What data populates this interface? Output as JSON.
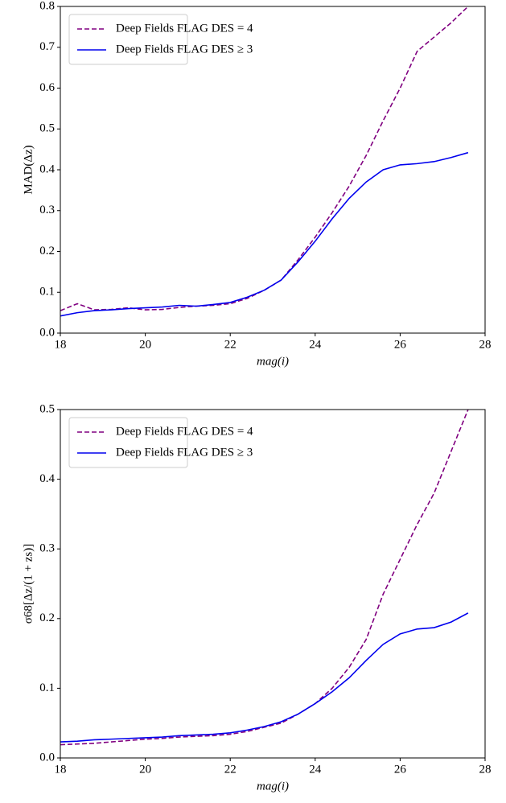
{
  "chart_data": [
    {
      "type": "line",
      "ylabel": "MAD(Δz)",
      "xlabel": "mag(i)",
      "x": [
        18,
        18.4,
        18.8,
        19.2,
        19.6,
        20,
        20.4,
        20.8,
        21.2,
        21.6,
        22,
        22.4,
        22.8,
        23.2,
        23.6,
        24,
        24.4,
        24.8,
        25.2,
        25.6,
        26,
        26.4,
        26.8,
        27.2,
        27.6
      ],
      "series": [
        {
          "name": "Deep Fields FLAG DES = 4",
          "color": "#800080",
          "linestyle": "dashed",
          "values": [
            0.055,
            0.072,
            0.057,
            0.058,
            0.062,
            0.057,
            0.058,
            0.063,
            0.066,
            0.068,
            0.072,
            0.085,
            0.105,
            0.13,
            0.18,
            0.235,
            0.295,
            0.36,
            0.435,
            0.52,
            0.6,
            0.69,
            0.725,
            0.76,
            0.8
          ]
        },
        {
          "name": "Deep Fields FLAG DES ≥ 3",
          "color": "#0000ee",
          "linestyle": "solid",
          "values": [
            0.042,
            0.05,
            0.055,
            0.057,
            0.06,
            0.062,
            0.064,
            0.068,
            0.066,
            0.07,
            0.075,
            0.088,
            0.105,
            0.13,
            0.175,
            0.225,
            0.28,
            0.33,
            0.37,
            0.4,
            0.412,
            0.415,
            0.42,
            0.43,
            0.442
          ]
        }
      ],
      "xlim": [
        18,
        28
      ],
      "xticks": [
        18,
        20,
        22,
        24,
        26,
        28
      ],
      "ylim": [
        0,
        0.8
      ],
      "yticks": [
        {
          "value": 0,
          "label": "0.0"
        },
        0.1,
        0.2,
        0.3,
        0.4,
        0.5,
        0.6,
        0.7,
        0.8
      ],
      "legend": "upper left"
    },
    {
      "type": "line",
      "ylabel": "σ68[Δz/(1 + zs)]",
      "xlabel": "mag(i)",
      "x": [
        18,
        18.4,
        18.8,
        19.2,
        19.6,
        20,
        20.4,
        20.8,
        21.2,
        21.6,
        22,
        22.4,
        22.8,
        23.2,
        23.6,
        24,
        24.4,
        24.8,
        25.2,
        25.6,
        26,
        26.4,
        26.8,
        27.2,
        27.6
      ],
      "series": [
        {
          "name": "Deep Fields FLAG DES = 4",
          "color": "#800080",
          "linestyle": "dashed",
          "values": [
            0.019,
            0.02,
            0.021,
            0.023,
            0.025,
            0.027,
            0.028,
            0.03,
            0.031,
            0.032,
            0.034,
            0.038,
            0.044,
            0.05,
            0.063,
            0.078,
            0.1,
            0.13,
            0.17,
            0.235,
            0.285,
            0.335,
            0.38,
            0.44,
            0.5
          ]
        },
        {
          "name": "Deep Fields FLAG DES ≥ 3",
          "color": "#0000ee",
          "linestyle": "solid",
          "values": [
            0.023,
            0.024,
            0.026,
            0.027,
            0.028,
            0.029,
            0.03,
            0.032,
            0.033,
            0.034,
            0.036,
            0.04,
            0.045,
            0.052,
            0.063,
            0.078,
            0.095,
            0.115,
            0.14,
            0.163,
            0.178,
            0.185,
            0.187,
            0.195,
            0.208
          ]
        }
      ],
      "xlim": [
        18,
        28
      ],
      "xticks": [
        18,
        20,
        22,
        24,
        26,
        28
      ],
      "ylim": [
        0,
        0.5
      ],
      "yticks": [
        {
          "value": 0,
          "label": "0.0"
        },
        0.1,
        0.2,
        0.3,
        0.4,
        0.5
      ],
      "legend": "upper left"
    }
  ]
}
